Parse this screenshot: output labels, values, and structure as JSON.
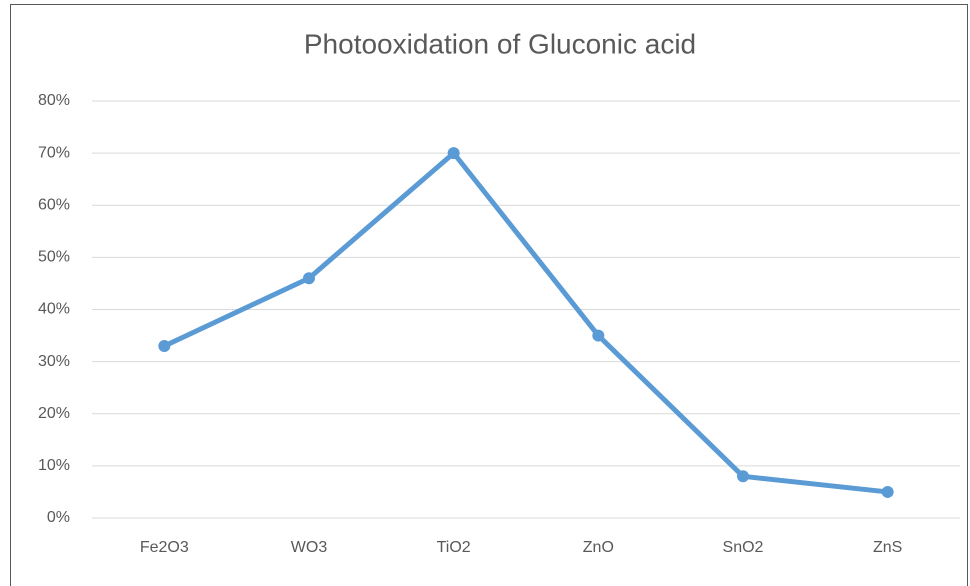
{
  "chart_data": {
    "type": "line",
    "title": "Photooxidation of Gluconic acid",
    "categories": [
      "Fe2O3",
      "WO3",
      "TiO2",
      "ZnO",
      "SnO2",
      "ZnS"
    ],
    "series": [
      {
        "name": "Photooxidation",
        "color": "#5b9bd5",
        "values": [
          33,
          46,
          70,
          35,
          8,
          5
        ]
      }
    ],
    "ylim": [
      0,
      80
    ],
    "yticks": [
      {
        "value": 0,
        "label": "0%"
      },
      {
        "value": 10,
        "label": "10%"
      },
      {
        "value": 20,
        "label": "20%"
      },
      {
        "value": 30,
        "label": "30%"
      },
      {
        "value": 40,
        "label": "40%"
      },
      {
        "value": 50,
        "label": "50%"
      },
      {
        "value": 60,
        "label": "60%"
      },
      {
        "value": 70,
        "label": "70%"
      },
      {
        "value": 80,
        "label": "80%"
      }
    ],
    "grid": true
  }
}
